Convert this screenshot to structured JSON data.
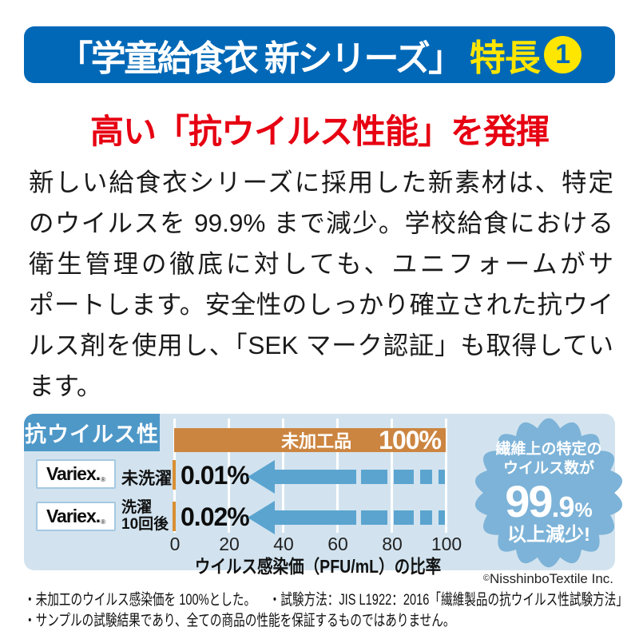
{
  "header": {
    "title": "「学童給食衣 新シリーズ」",
    "feature_label": "特長",
    "feature_number": "1"
  },
  "headline": "高い「抗ウイルス性能」を発揮",
  "body": {
    "lines": [
      "新しい給食衣シリーズに採用した新素材は、特定",
      "のウイルスを 99.9% まで減少。学校給食における",
      "衛生管理の徹底に対しても、ユニフォームがサ",
      "ポートします。安全性のしっかり確立された抗ウイ",
      "ルス剤を使用し、「SEK マーク認証」も取得してい",
      "ます。"
    ]
  },
  "chart_data": {
    "type": "bar",
    "title": "抗ウイルス性",
    "xlabel": "ウイルス感染価（PFU/mL）の比率",
    "xlim": [
      0,
      100
    ],
    "xticks": [
      "0",
      "20",
      "40",
      "60",
      "80",
      "100"
    ],
    "grid": true,
    "reference": {
      "label": "未加工品",
      "value": 100,
      "value_label": "100%"
    },
    "registered_mark": "®",
    "rows": [
      {
        "brand": "Variex.",
        "condition": "未洗濯",
        "condition_line2": "",
        "value": 0.01,
        "value_label": "0.01%"
      },
      {
        "brand": "Variex.",
        "condition": "洗濯",
        "condition_line2": "10回後",
        "value": 0.02,
        "value_label": "0.02%"
      }
    ],
    "badge": {
      "line1": "繊維上の特定の",
      "line2": "ウイルス数が",
      "percent_big": "99",
      "percent_small": ".9",
      "percent_sign": "%",
      "line3": "以上減少!"
    }
  },
  "copyright": {
    "symbol": "©",
    "text": "NisshinboTextile Inc."
  },
  "footnotes": {
    "line1a": "・未加工のウイルス感染価を 100%とした。",
    "line1b": "・試験方法：JIS L1922：2016「繊維製品の抗ウイルス性試験方法」",
    "line2": "・サンプルの試験結果であり、全ての商品の性能を保証するものではありません。"
  },
  "colors": {
    "header_blue": "#0068b7",
    "accent_yellow": "#ffe600",
    "headline_red": "#e60012",
    "panel_bg": "#d2e3ef",
    "label_blue": "#4e98c8",
    "arrow_blue": "#5ba4d0",
    "badge_blue": "#7db3d8",
    "bar_orange": "#cc8540",
    "tick_orange": "#d98f33"
  }
}
